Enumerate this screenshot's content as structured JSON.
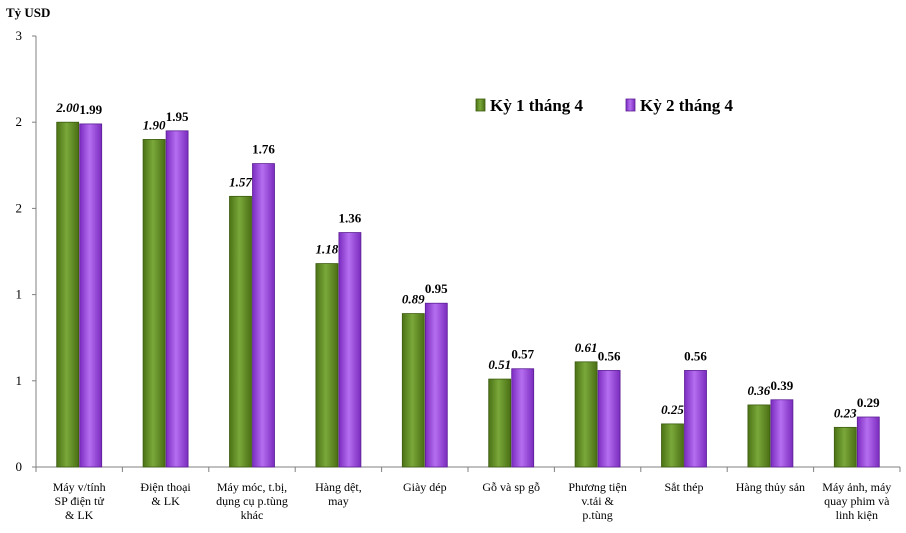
{
  "chart_data": {
    "type": "bar",
    "title": "",
    "ylabel": "Tỷ USD",
    "xlabel": "",
    "ylim": [
      0,
      2.5
    ],
    "ytick_values": [
      0,
      0.5,
      1,
      1.5,
      2,
      2.5
    ],
    "ytick_labels": [
      "0",
      "1",
      "1",
      "2",
      "2",
      "3"
    ],
    "categories": [
      [
        "Máy v/tính",
        "SP điện tử",
        "& LK"
      ],
      [
        "Điện thoại",
        "& LK"
      ],
      [
        "Máy móc, t.bị,",
        "dụng cụ p.tùng",
        "khác"
      ],
      [
        "Hàng dệt,",
        "may"
      ],
      [
        "Giày dép"
      ],
      [
        "Gỗ và sp gỗ"
      ],
      [
        "Phương tiện",
        "v.tải &",
        "p.tùng"
      ],
      [
        "Sắt thép"
      ],
      [
        "Hàng thủy sản"
      ],
      [
        "Máy ảnh, máy",
        "quay phim và",
        "linh kiện"
      ]
    ],
    "series": [
      {
        "name": "Kỳ 1 tháng 4",
        "color": "#5e8a1e",
        "values": [
          2.0,
          1.9,
          1.57,
          1.18,
          0.89,
          0.51,
          0.61,
          0.25,
          0.36,
          0.23
        ],
        "labels": [
          "2.00",
          "1.90",
          "1.57",
          "1.18",
          "0.89",
          "0.51",
          "0.61",
          "0.25",
          "0.36",
          "0.23"
        ]
      },
      {
        "name": "Kỳ 2 tháng 4",
        "color": "#9b3fe0",
        "values": [
          1.99,
          1.95,
          1.76,
          1.36,
          0.95,
          0.57,
          0.56,
          0.56,
          0.39,
          0.29
        ],
        "labels": [
          "1.99",
          "1.95",
          "1.76",
          "1.36",
          "0.95",
          "0.57",
          "0.56",
          "0.56",
          "0.39",
          "0.29"
        ]
      }
    ],
    "legend_position": "top-right",
    "grid": false
  }
}
